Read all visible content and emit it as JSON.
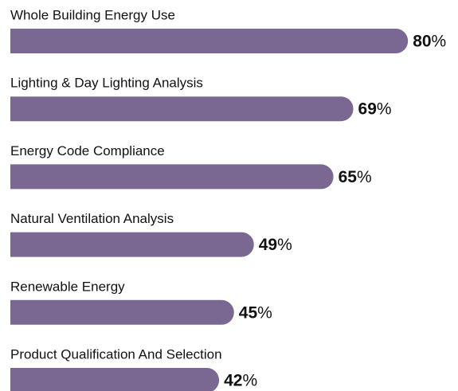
{
  "chart_data": {
    "type": "bar",
    "orientation": "horizontal",
    "categories": [
      "Whole Building Energy Use",
      "Lighting & Day Lighting Analysis",
      "Energy Code Compliance",
      "Natural Ventilation Analysis",
      "Renewable Energy",
      "Product Qualification And Selection"
    ],
    "values": [
      80,
      69,
      65,
      49,
      45,
      42
    ],
    "value_labels": [
      "80%",
      "69%",
      "65%",
      "49%",
      "45%",
      "42%"
    ],
    "color": "#7a6893"
  }
}
